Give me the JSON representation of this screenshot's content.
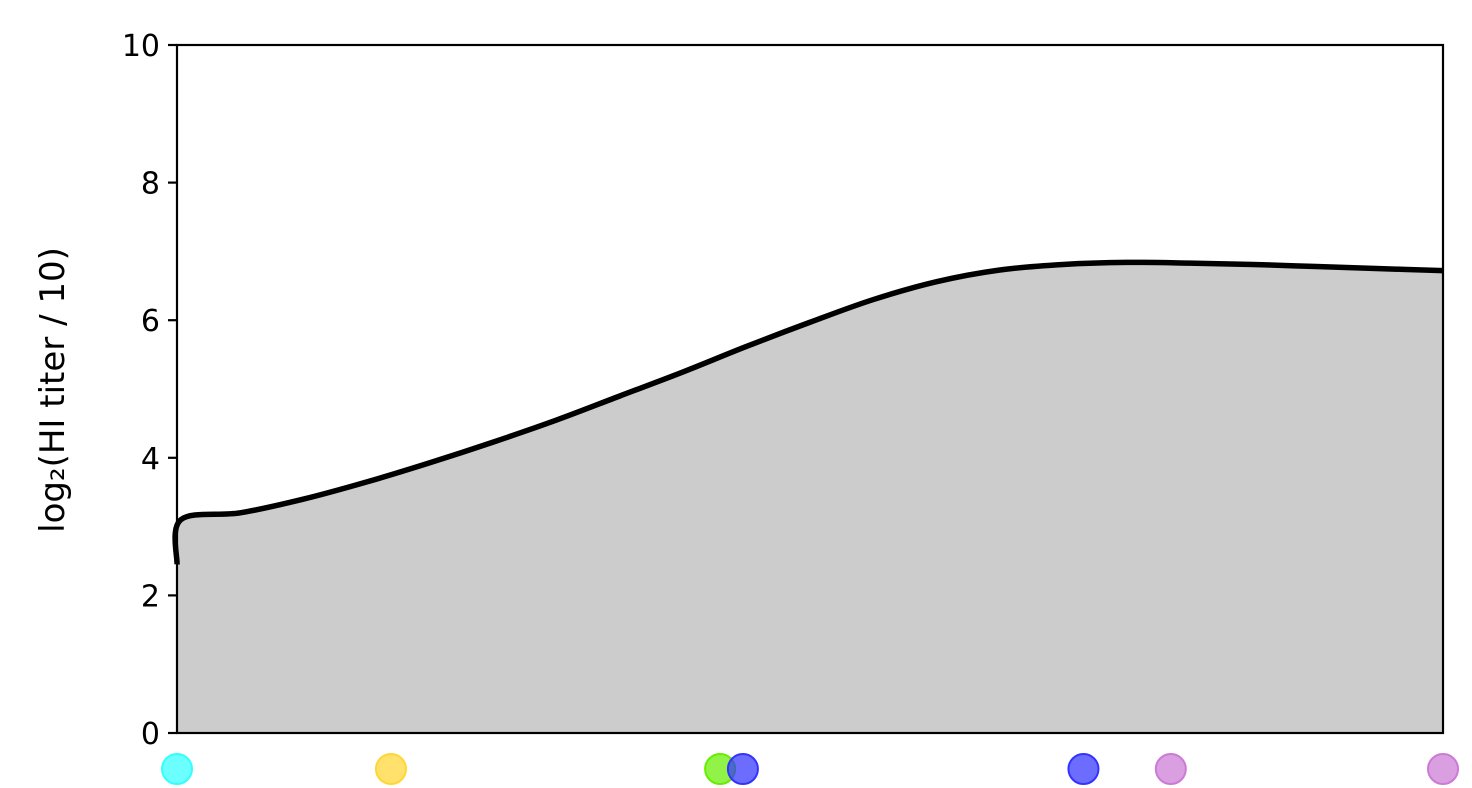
{
  "chart_data": {
    "type": "area",
    "title": "",
    "xlabel": "",
    "ylabel": "log₂(HI titer / 10)",
    "ylim": [
      0,
      10
    ],
    "xlim": [
      0,
      1
    ],
    "yticks": [
      0,
      2,
      4,
      6,
      8,
      10
    ],
    "ytick_labels": [
      "0",
      "2",
      "4",
      "6",
      "8",
      "10"
    ],
    "grid": false,
    "legend": "none",
    "line_color": "#000000",
    "fill_color": "#cccccc",
    "series": [
      {
        "x": [
          0.0,
          0.003,
          0.05,
          0.1,
          0.15,
          0.2,
          0.25,
          0.3,
          0.35,
          0.4,
          0.45,
          0.5,
          0.55,
          0.6,
          0.65,
          0.7,
          0.75,
          0.8,
          0.85,
          0.9,
          0.95,
          1.0
        ],
        "values": [
          2.45,
          3.1,
          3.2,
          3.4,
          3.65,
          3.93,
          4.23,
          4.55,
          4.9,
          5.25,
          5.62,
          5.97,
          6.3,
          6.56,
          6.73,
          6.81,
          6.84,
          6.83,
          6.81,
          6.78,
          6.75,
          6.72
        ]
      }
    ],
    "markers": [
      {
        "x": 0.0,
        "color": "#33ffff"
      },
      {
        "x": 0.169,
        "color": "#ffd633"
      },
      {
        "x": 0.429,
        "color": "#66ee00"
      },
      {
        "x": 0.447,
        "color": "#3333ff"
      },
      {
        "x": 0.716,
        "color": "#3333ff"
      },
      {
        "x": 0.785,
        "color": "#cc7ad6"
      },
      {
        "x": 1.0,
        "color": "#cc7ad6"
      }
    ]
  }
}
